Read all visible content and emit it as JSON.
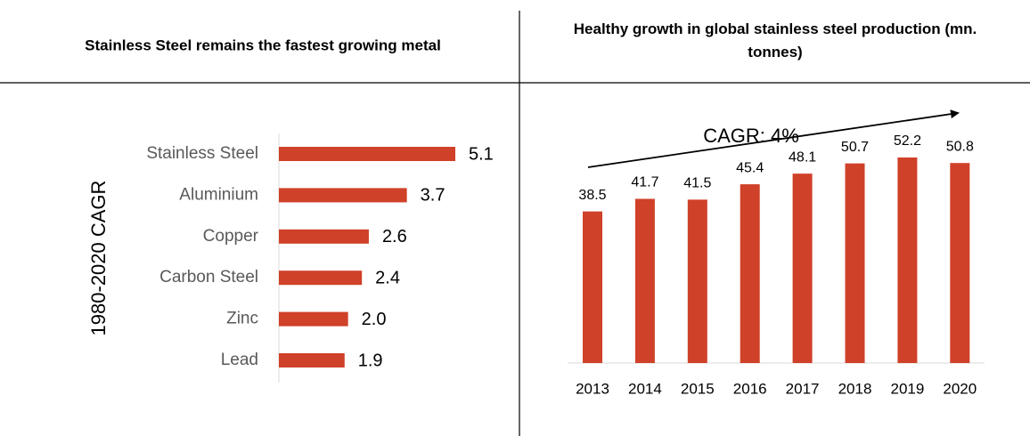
{
  "chart_data": [
    {
      "type": "hbar",
      "title": "Stainless Steel remains the fastest growing metal",
      "ylabel": "1980-2020 CAGR",
      "categories": [
        "Stainless Steel",
        "Aluminium",
        "Copper",
        "Carbon Steel",
        "Zinc",
        "Lead"
      ],
      "values": [
        5.1,
        3.7,
        2.6,
        2.4,
        2.0,
        1.9
      ],
      "value_labels": [
        "5.1",
        "3.7",
        "2.6",
        "2.4",
        "2.0",
        "1.9"
      ],
      "color": "#cf4128"
    },
    {
      "type": "bar",
      "title": "Healthy growth in global stainless steel production (mn. tonnes)",
      "annotation": "CAGR: 4%",
      "categories": [
        "2013",
        "2014",
        "2015",
        "2016",
        "2017",
        "2018",
        "2019",
        "2020"
      ],
      "values": [
        38.5,
        41.7,
        41.5,
        45.4,
        48.1,
        50.7,
        52.2,
        50.8
      ],
      "color": "#cf4128"
    }
  ]
}
